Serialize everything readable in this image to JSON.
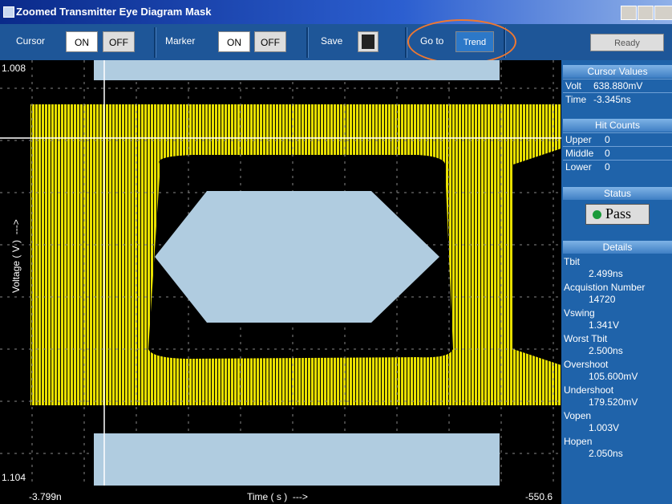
{
  "window": {
    "title": "Zoomed Transmitter Eye Diagram Mask"
  },
  "toolbar": {
    "cursor": {
      "label": "Cursor",
      "on": "ON",
      "off": "OFF"
    },
    "marker": {
      "label": "Marker",
      "on": "ON",
      "off": "OFF"
    },
    "save": {
      "label": "Save"
    },
    "goto": {
      "label": "Go to",
      "button": "Trend"
    },
    "status": "Ready"
  },
  "plot": {
    "y_top": "1.008",
    "y_bottom": "1.104",
    "x_left": "-3.799n",
    "x_right": "-550.6",
    "x_label": "Time ( s )  --->",
    "y_label": "Voltage ( V )  --->"
  },
  "panel": {
    "cursor_values": {
      "title": "Cursor Values",
      "rows": [
        [
          "Volt",
          "638.880mV"
        ],
        [
          "Time",
          "-3.345ns"
        ]
      ]
    },
    "hit_counts": {
      "title": "Hit Counts",
      "rows": [
        [
          "Upper",
          "0"
        ],
        [
          "Middle",
          "0"
        ],
        [
          "Lower",
          "0"
        ]
      ]
    },
    "status": {
      "title": "Status",
      "result": "Pass"
    },
    "details": {
      "title": "Details",
      "items": [
        [
          "Tbit",
          "2.499ns"
        ],
        [
          "Acquistion Number",
          "14720"
        ],
        [
          "Vswing",
          "1.341V"
        ],
        [
          "Worst Tbit",
          "2.500ns"
        ],
        [
          "Overshoot",
          "105.600mV"
        ],
        [
          "Undershoot",
          "179.520mV"
        ],
        [
          "Vopen",
          "1.003V"
        ],
        [
          "Hopen",
          "2.050ns"
        ]
      ]
    }
  }
}
